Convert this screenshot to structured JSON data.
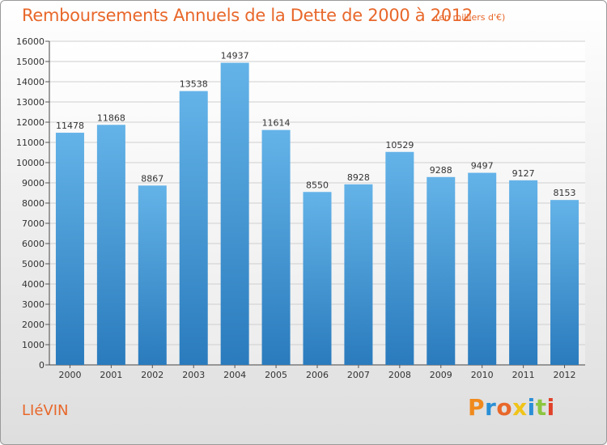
{
  "header": {
    "title": "Remboursements Annuels de la Dette de 2000 à 2012",
    "subtitle": "(en milliers d'€)"
  },
  "footer": {
    "city": "LIéVIN",
    "logo_text": "Proxiti"
  },
  "colors": {
    "title": "#e8672a",
    "bar_top": "#64b3e8",
    "bar_bottom": "#2a7bbd",
    "logo_letters": [
      "#f08a1e",
      "#2a8fd6",
      "#e8672a",
      "#f0c419",
      "#2a8fd6",
      "#8cc63f",
      "#e0422a"
    ]
  },
  "chart_data": {
    "type": "bar",
    "categories": [
      "2000",
      "2001",
      "2002",
      "2003",
      "2004",
      "2005",
      "2006",
      "2007",
      "2008",
      "2009",
      "2010",
      "2011",
      "2012"
    ],
    "series": [
      {
        "values": [
          11478,
          11868,
          8867,
          13538,
          14937,
          11614,
          8550,
          8928,
          10529,
          9288,
          9497,
          9127,
          8153
        ]
      }
    ],
    "ylim": [
      0,
      16000
    ],
    "yticks": [
      0,
      1000,
      2000,
      3000,
      4000,
      5000,
      6000,
      7000,
      8000,
      9000,
      10000,
      11000,
      12000,
      13000,
      14000,
      15000,
      16000
    ],
    "xlabel": "",
    "ylabel": "",
    "grid": true,
    "data_labels": true
  }
}
